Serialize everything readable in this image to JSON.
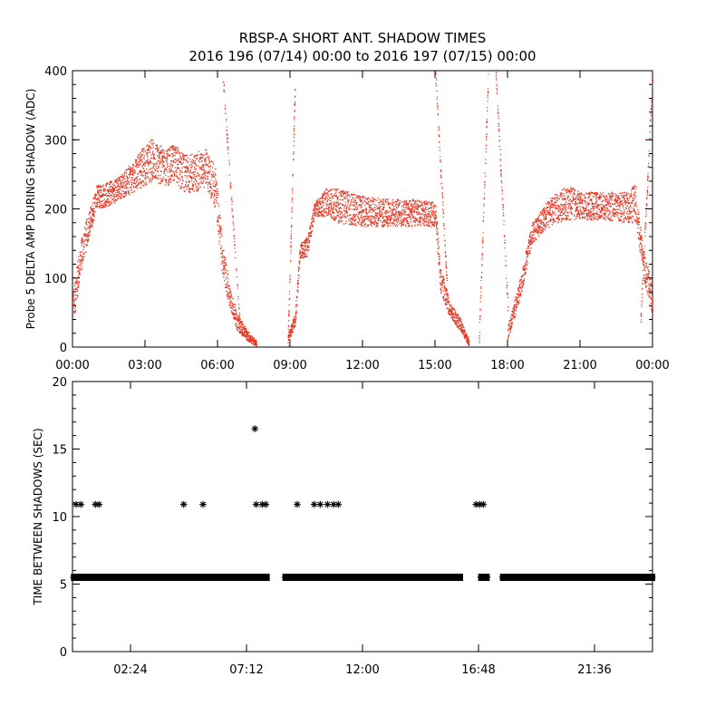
{
  "title": "RBSP-A SHORT ANT. SHADOW TIMES",
  "subtitle": "2016 196 (07/14) 00:00 to 2016 197 (07/15) 00:00",
  "chart_data": [
    {
      "type": "scatter",
      "ylabel": "Probe 5 DELTA AMP DURING SHADOW (ADC)",
      "xlabel": "",
      "xlim_hours": [
        0,
        24
      ],
      "ylim": [
        0,
        400
      ],
      "x_ticks": [
        "00:00",
        "03:00",
        "06:00",
        "09:00",
        "12:00",
        "15:00",
        "18:00",
        "21:00",
        "00:00"
      ],
      "y_ticks": [
        "0",
        "100",
        "200",
        "300",
        "400"
      ],
      "grid": false,
      "marker_color": "#e8321e",
      "envelope": {
        "x_hours": [
          0.0,
          0.3,
          0.6,
          1.0,
          1.5,
          2.0,
          2.5,
          3.0,
          3.4,
          3.8,
          4.2,
          4.6,
          5.0,
          5.5,
          5.9,
          6.2,
          6.5,
          6.8,
          7.2,
          7.6,
          8.0,
          8.4,
          8.9,
          9.2,
          9.4,
          9.7,
          10.0,
          10.5,
          11.0,
          12.0,
          13.0,
          14.0,
          15.0,
          15.2,
          15.6,
          16.0,
          16.4,
          16.8,
          17.2,
          17.6,
          18.0,
          18.5,
          19.0,
          19.5,
          20.0,
          20.5,
          21.0,
          22.0,
          23.0,
          23.3,
          23.6,
          23.85,
          24.0
        ],
        "upper": [
          80,
          150,
          190,
          235,
          240,
          250,
          270,
          295,
          305,
          285,
          295,
          280,
          280,
          290,
          260,
          150,
          90,
          50,
          25,
          10,
          null,
          null,
          20,
          50,
          150,
          160,
          210,
          230,
          230,
          220,
          215,
          215,
          210,
          120,
          65,
          45,
          10,
          null,
          null,
          null,
          30,
          100,
          180,
          205,
          225,
          235,
          225,
          225,
          225,
          240,
          140,
          110,
          80
        ],
        "lower": [
          30,
          100,
          150,
          200,
          205,
          215,
          225,
          235,
          240,
          235,
          235,
          225,
          225,
          230,
          200,
          100,
          55,
          25,
          10,
          2,
          null,
          null,
          5,
          30,
          130,
          130,
          190,
          190,
          180,
          175,
          175,
          175,
          175,
          80,
          45,
          25,
          2,
          null,
          null,
          null,
          10,
          70,
          150,
          170,
          180,
          185,
          185,
          185,
          180,
          180,
          100,
          70,
          40
        ]
      }
    },
    {
      "type": "scatter",
      "ylabel": "TIME BETWEEN SHADOWS (SEC)",
      "xlabel": "",
      "xlim_hours": [
        0,
        24
      ],
      "ylim": [
        0,
        20
      ],
      "x_ticks": [
        "02:24",
        "07:12",
        "12:00",
        "16:48",
        "21:36"
      ],
      "y_ticks": [
        "0",
        "5",
        "10",
        "15",
        "20"
      ],
      "grid": false,
      "marker": "asterisk",
      "marker_color": "#000000",
      "baseline_value": 5.5,
      "baseline_segments_hours": [
        [
          0.05,
          7.6
        ],
        [
          7.75,
          8.05
        ],
        [
          8.8,
          16.05
        ],
        [
          16.9,
          17.15
        ],
        [
          17.8,
          24.0
        ]
      ],
      "points": [
        {
          "x": 0.15,
          "y": 10.9
        },
        {
          "x": 0.35,
          "y": 10.9
        },
        {
          "x": 0.95,
          "y": 10.9
        },
        {
          "x": 1.1,
          "y": 10.9
        },
        {
          "x": 4.6,
          "y": 10.9
        },
        {
          "x": 5.4,
          "y": 10.9
        },
        {
          "x": 7.55,
          "y": 16.5
        },
        {
          "x": 7.6,
          "y": 10.9
        },
        {
          "x": 7.85,
          "y": 10.9
        },
        {
          "x": 8.0,
          "y": 10.9
        },
        {
          "x": 9.3,
          "y": 10.9
        },
        {
          "x": 10.0,
          "y": 10.9
        },
        {
          "x": 10.25,
          "y": 10.9
        },
        {
          "x": 10.55,
          "y": 10.9
        },
        {
          "x": 10.8,
          "y": 10.9
        },
        {
          "x": 11.0,
          "y": 10.9
        },
        {
          "x": 16.7,
          "y": 10.9
        },
        {
          "x": 16.85,
          "y": 10.9
        },
        {
          "x": 17.0,
          "y": 10.9
        }
      ]
    }
  ]
}
